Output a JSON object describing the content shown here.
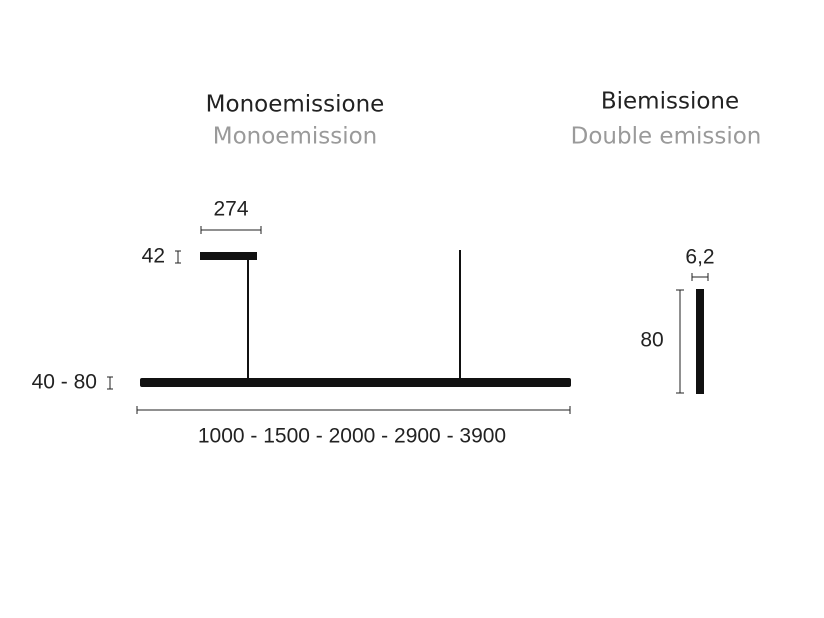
{
  "left": {
    "title": "Monoemissione",
    "subtitle": "Monoemission",
    "dimensions": {
      "canopy_width": "274",
      "canopy_height": "42",
      "bar_height": "40 - 80",
      "lengths": "1000 - 1500 - 2000 - 2900 - 3900"
    }
  },
  "right": {
    "title": "Biemissione",
    "subtitle": "Double emission",
    "dimensions": {
      "width": "6,2",
      "height": "80"
    }
  }
}
